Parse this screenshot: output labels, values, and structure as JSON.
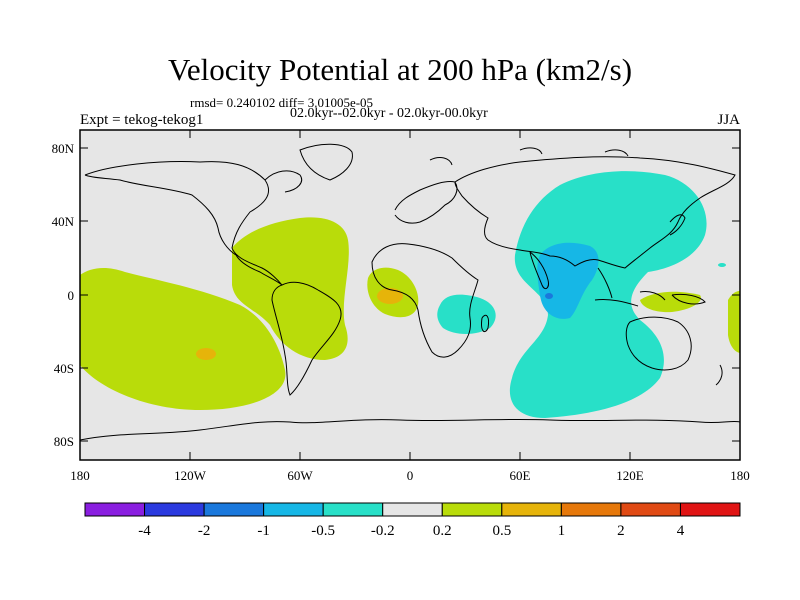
{
  "title": "Velocity Potential at 200 hPa (km2/s)",
  "stats": "rmsd= 0.240102 diff= 3.01005e-05",
  "left_label": "Expt = tekog-tekog1",
  "period": "02.0kyr--02.0kyr - 02.0kyr-00.0kyr",
  "season": "JJA",
  "lat_ticks": [
    "80N",
    "40N",
    "0",
    "40S",
    "80S"
  ],
  "lon_ticks": [
    "180",
    "120W",
    "60W",
    "0",
    "60E",
    "120E",
    "180"
  ],
  "colorbar": {
    "labels": [
      "-4",
      "-2",
      "-1",
      "-0.5",
      "-0.2",
      "0.2",
      "0.5",
      "1",
      "2",
      "4"
    ],
    "colors": [
      "#8a1ee0",
      "#2b3adf",
      "#1a78dc",
      "#16b7e6",
      "#28e0c8",
      "#e6e6e6",
      "#b9dc0a",
      "#e6b40a",
      "#e6780a",
      "#e04a14",
      "#e01414"
    ]
  },
  "colors": {
    "land_background": "#e6e6e6",
    "neg_light": "#28e0c8",
    "neg_mid": "#16b7e6",
    "neg_strong": "#1a78dc",
    "neg_max": "#2b3adf",
    "pos_light": "#b9dc0a",
    "pos_mid": "#e6b40a"
  }
}
